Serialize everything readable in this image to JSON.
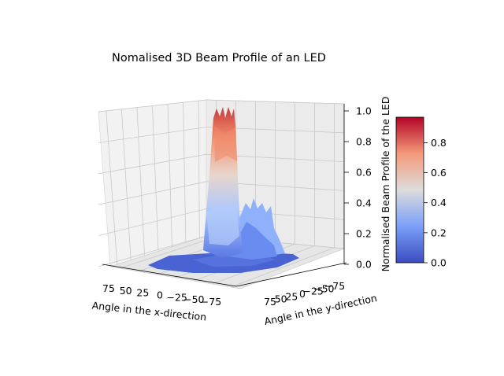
{
  "chart_data": {
    "type": "surface",
    "title": "Nomalised 3D Beam Profile of an LED",
    "xlabel": "Angle in the x-direction",
    "ylabel": "Angle in the y-direction",
    "zlabel": "Normalised Beam Profile of the LED",
    "x_ticks": [
      "75",
      "50",
      "25",
      "0",
      "−25",
      "−50",
      "−75"
    ],
    "y_ticks": [
      "75",
      "50",
      "25",
      "0",
      "−25",
      "−50",
      "−75"
    ],
    "z_ticks": [
      "0.0",
      "0.2",
      "0.4",
      "0.6",
      "0.8",
      "1.0"
    ],
    "zlim": [
      0,
      1
    ],
    "colormap": "coolwarm",
    "colorbar": {
      "ticks": [
        "0.0",
        "0.2",
        "0.4",
        "0.6",
        "0.8"
      ],
      "range": [
        0,
        0.97
      ]
    },
    "grid": true,
    "series": [
      {
        "description": "narrow central peak",
        "x_center": 0,
        "y_center": 0,
        "peak": 1.0
      },
      {
        "description": "secondary ridge",
        "x_center": -25,
        "y_center": -25,
        "peak": 0.4
      }
    ]
  }
}
